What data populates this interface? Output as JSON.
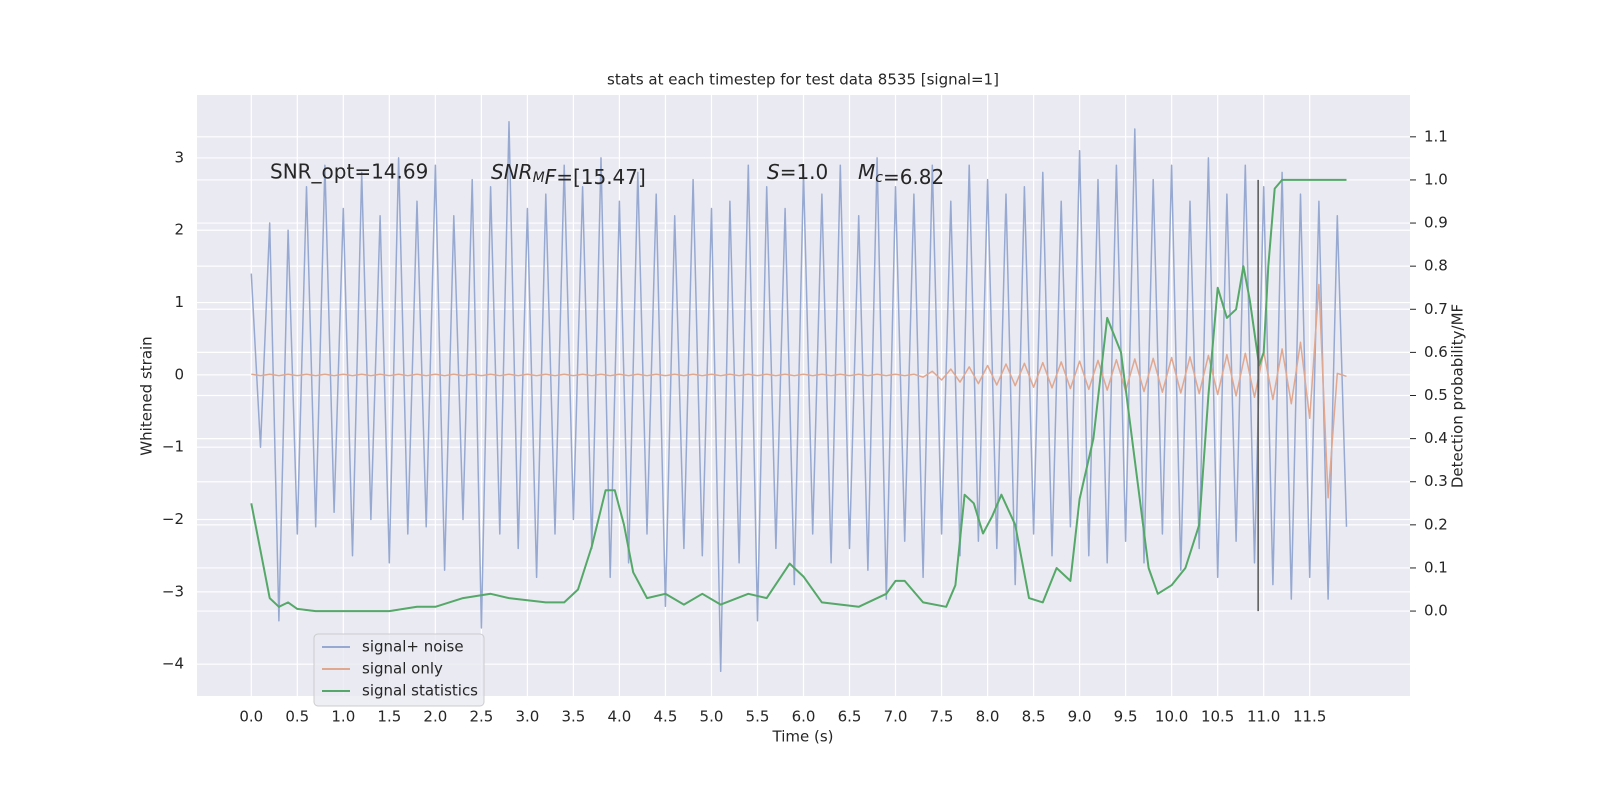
{
  "chart_data": {
    "type": "line",
    "title": "stats at each timestep for test data 8535 [signal=1]",
    "xlabel": "Time (s)",
    "ylabel": "Whitened strain",
    "y2label": "Detection probability/MF",
    "xlim": [
      -0.59,
      12.59
    ],
    "ylim": [
      -4.44,
      3.87
    ],
    "y2lim": [
      -0.197,
      1.197
    ],
    "xticks": [
      {
        "value": 0,
        "label": "0.0"
      },
      0.5,
      {
        "value": 1,
        "label": "1.0"
      },
      1.5,
      {
        "value": 2,
        "label": "2.0"
      },
      2.5,
      {
        "value": 3,
        "label": "3.0"
      },
      3.5,
      {
        "value": 4,
        "label": "4.0"
      },
      4.5,
      {
        "value": 5,
        "label": "5.0"
      },
      5.5,
      {
        "value": 6,
        "label": "6.0"
      },
      6.5,
      {
        "value": 7,
        "label": "7.0"
      },
      7.5,
      {
        "value": 8,
        "label": "8.0"
      },
      8.5,
      {
        "value": 9,
        "label": "9.0"
      },
      9.5,
      {
        "value": 10,
        "label": "10.0"
      },
      10.5,
      {
        "value": 11,
        "label": "11.0"
      },
      11.5
    ],
    "yticks": [
      {
        "value": -4,
        "label": "−4"
      },
      {
        "value": -3,
        "label": "−3"
      },
      {
        "value": -2,
        "label": "−2"
      },
      {
        "value": -1,
        "label": "−1"
      },
      0,
      1,
      2,
      3
    ],
    "y2ticks": [
      {
        "value": 0,
        "label": "0.0"
      },
      0.1,
      0.2,
      0.3,
      0.4,
      0.5,
      0.6,
      0.7,
      0.8,
      0.9,
      {
        "value": 1,
        "label": "1.0"
      },
      1.1
    ],
    "grid": true,
    "legend": "lower left",
    "x": [
      0,
      0.1,
      0.2,
      0.3,
      0.4,
      0.5,
      0.6,
      0.7,
      0.8,
      0.9,
      1,
      1.1,
      1.2,
      1.3,
      1.4,
      1.5,
      1.6,
      1.7,
      1.8,
      1.9,
      2,
      2.1,
      2.2,
      2.3,
      2.4,
      2.5,
      2.6,
      2.7,
      2.8,
      2.9,
      3,
      3.1,
      3.2,
      3.3,
      3.4,
      3.5,
      3.6,
      3.7,
      3.8,
      3.9,
      4,
      4.1,
      4.2,
      4.3,
      4.4,
      4.5,
      4.6,
      4.7,
      4.8,
      4.9,
      5,
      5.1,
      5.2,
      5.3,
      5.4,
      5.5,
      5.6,
      5.7,
      5.8,
      5.9,
      6,
      6.1,
      6.2,
      6.3,
      6.4,
      6.5,
      6.6,
      6.7,
      6.8,
      6.9,
      7,
      7.1,
      7.2,
      7.3,
      7.4,
      7.5,
      7.6,
      7.7,
      7.8,
      7.9,
      8,
      8.1,
      8.2,
      8.3,
      8.4,
      8.5,
      8.6,
      8.7,
      8.8,
      8.9,
      9,
      9.1,
      9.2,
      9.3,
      9.4,
      9.5,
      9.6,
      9.7,
      9.8,
      9.9,
      10,
      10.1,
      10.2,
      10.3,
      10.4,
      10.5,
      10.6,
      10.7,
      10.8,
      10.9,
      11,
      11.1,
      11.2,
      11.3,
      11.4,
      11.5,
      11.6,
      11.7,
      11.8,
      11.9
    ],
    "series": [
      {
        "name": "signal+ noise",
        "color": "#97a9d1",
        "values": [
          1.4,
          -1.0,
          2.1,
          -3.4,
          2.0,
          -2.2,
          2.6,
          -2.1,
          2.9,
          -1.9,
          2.3,
          -2.5,
          2.8,
          -2.0,
          2.2,
          -2.6,
          3.0,
          -2.2,
          2.4,
          -2.1,
          2.9,
          -2.7,
          2.2,
          -2.0,
          2.7,
          -3.5,
          2.6,
          -2.2,
          3.5,
          -2.4,
          2.3,
          -2.8,
          2.5,
          -2.2,
          2.9,
          -2.0,
          2.6,
          -2.4,
          3.0,
          -2.8,
          2.4,
          -2.6,
          2.8,
          -2.2,
          2.5,
          -3.2,
          2.2,
          -2.4,
          2.7,
          -2.5,
          2.3,
          -4.1,
          2.4,
          -2.6,
          2.9,
          -3.4,
          2.6,
          -2.4,
          2.3,
          -2.9,
          2.8,
          -2.2,
          2.5,
          -2.6,
          2.9,
          -2.4,
          2.2,
          -2.7,
          3.0,
          -3.1,
          2.6,
          -2.3,
          2.5,
          -2.8,
          2.9,
          -2.2,
          2.4,
          -2.5,
          2.9,
          -2.3,
          2.7,
          -2.4,
          2.5,
          -2.9,
          2.6,
          -2.2,
          2.8,
          -2.5,
          2.4,
          -2.1,
          3.1,
          -2.5,
          2.7,
          -2.6,
          2.9,
          -2.3,
          3.4,
          -2.6,
          2.7,
          -2.2,
          2.9,
          -2.7,
          2.4,
          -2.4,
          3.0,
          -2.8,
          2.5,
          -2.3,
          2.9,
          -2.6,
          2.6,
          -2.9,
          2.8,
          -3.1,
          2.5,
          -2.8,
          2.4,
          -3.1,
          2.2,
          -2.1
        ]
      },
      {
        "name": "signal only",
        "color": "#e0a891",
        "values": [
          0.01,
          -0.01,
          0.01,
          -0.01,
          0.01,
          -0.01,
          0.01,
          -0.01,
          0.01,
          -0.01,
          0.01,
          -0.01,
          0.01,
          -0.01,
          0.01,
          -0.01,
          0.01,
          -0.01,
          0.01,
          -0.01,
          0.01,
          -0.01,
          0.01,
          -0.01,
          0.01,
          -0.01,
          0.01,
          -0.01,
          0.01,
          -0.01,
          0.01,
          -0.01,
          0.01,
          -0.01,
          0.01,
          -0.01,
          0.01,
          -0.01,
          0.01,
          -0.01,
          0.01,
          -0.01,
          0.01,
          -0.01,
          0.01,
          -0.01,
          0.01,
          -0.01,
          0.01,
          -0.01,
          0.01,
          -0.01,
          0.01,
          -0.01,
          0.01,
          -0.01,
          0.01,
          -0.01,
          0.01,
          -0.01,
          0.01,
          -0.01,
          0.01,
          -0.01,
          0.01,
          -0.01,
          0.01,
          -0.01,
          0.01,
          -0.01,
          0.01,
          -0.01,
          0.01,
          -0.03,
          0.05,
          -0.07,
          0.08,
          -0.1,
          0.11,
          -0.12,
          0.13,
          -0.14,
          0.15,
          -0.15,
          0.16,
          -0.17,
          0.17,
          -0.18,
          0.18,
          -0.19,
          0.19,
          -0.2,
          0.2,
          -0.21,
          0.21,
          -0.22,
          0.22,
          -0.23,
          0.23,
          -0.24,
          0.24,
          -0.25,
          0.25,
          -0.26,
          0.27,
          -0.27,
          0.28,
          -0.29,
          0.3,
          -0.31,
          0.32,
          -0.34,
          0.36,
          -0.4,
          0.45,
          -0.6,
          1.25,
          -1.7,
          0.02,
          -0.02
        ]
      },
      {
        "name": "signal statistics",
        "color": "#55a868",
        "axis": "y2",
        "x": [
          0,
          0.1,
          0.2,
          0.3,
          0.4,
          0.5,
          0.7,
          1.0,
          1.5,
          1.8,
          2.0,
          2.3,
          2.6,
          2.8,
          3.2,
          3.4,
          3.55,
          3.7,
          3.85,
          3.95,
          4.05,
          4.15,
          4.3,
          4.5,
          4.7,
          4.9,
          5.1,
          5.4,
          5.6,
          5.85,
          6.0,
          6.2,
          6.6,
          6.9,
          7.0,
          7.1,
          7.3,
          7.55,
          7.65,
          7.75,
          7.85,
          7.95,
          8.05,
          8.15,
          8.3,
          8.45,
          8.6,
          8.75,
          8.9,
          9.0,
          9.15,
          9.3,
          9.45,
          9.6,
          9.75,
          9.85,
          10.0,
          10.15,
          10.3,
          10.4,
          10.5,
          10.6,
          10.7,
          10.78,
          10.85,
          10.95,
          11.0,
          11.05,
          11.12,
          11.2,
          11.5,
          11.9
        ],
        "values": [
          0.25,
          0.14,
          0.03,
          0.01,
          0.02,
          0.005,
          0.0,
          0.0,
          0.0,
          0.01,
          0.01,
          0.03,
          0.04,
          0.03,
          0.02,
          0.02,
          0.05,
          0.15,
          0.28,
          0.28,
          0.2,
          0.09,
          0.03,
          0.04,
          0.015,
          0.04,
          0.015,
          0.04,
          0.03,
          0.11,
          0.08,
          0.02,
          0.01,
          0.04,
          0.07,
          0.07,
          0.02,
          0.01,
          0.06,
          0.27,
          0.25,
          0.18,
          0.22,
          0.27,
          0.2,
          0.03,
          0.02,
          0.1,
          0.07,
          0.26,
          0.4,
          0.68,
          0.6,
          0.35,
          0.1,
          0.04,
          0.06,
          0.1,
          0.2,
          0.5,
          0.75,
          0.68,
          0.7,
          0.8,
          0.72,
          0.57,
          0.6,
          0.8,
          0.98,
          1.0,
          1.0,
          1.0
        ]
      }
    ],
    "vline": {
      "x": 10.94,
      "y2": [
        0,
        1
      ],
      "color": "#555555"
    },
    "annotations": [
      {
        "text": "SNR_opt=14.69",
        "math": false
      },
      {
        "text": "SNR_MF=[15.47]",
        "math": true
      },
      {
        "text": "S=1.0",
        "math": true
      },
      {
        "text": "M_c=6.82",
        "math": true
      }
    ]
  }
}
